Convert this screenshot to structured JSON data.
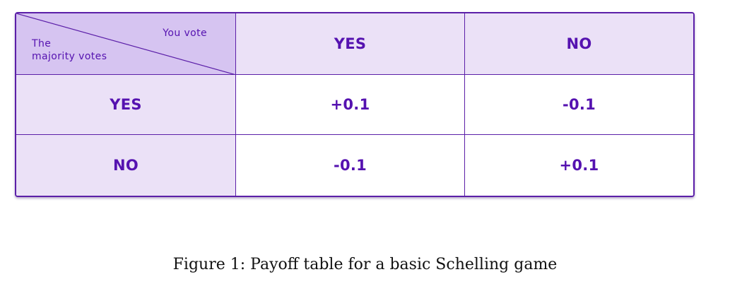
{
  "table": {
    "corner_top_label": "You vote",
    "corner_bottom_label_line1": "The",
    "corner_bottom_label_line2": "majority votes",
    "column_headers": [
      "YES",
      "NO"
    ],
    "row_headers": [
      "YES",
      "NO"
    ],
    "cells": [
      [
        "+0.1",
        "-0.1"
      ],
      [
        "-0.1",
        "+0.1"
      ]
    ],
    "colors": {
      "accent": "#5b1fa8",
      "text": "#5512b0",
      "corner_fill": "#d6c4f1",
      "header_fill": "#ebe1f7",
      "cell_fill": "#ffffff"
    }
  },
  "caption": "Figure 1: Payoff table for a basic Schelling game"
}
